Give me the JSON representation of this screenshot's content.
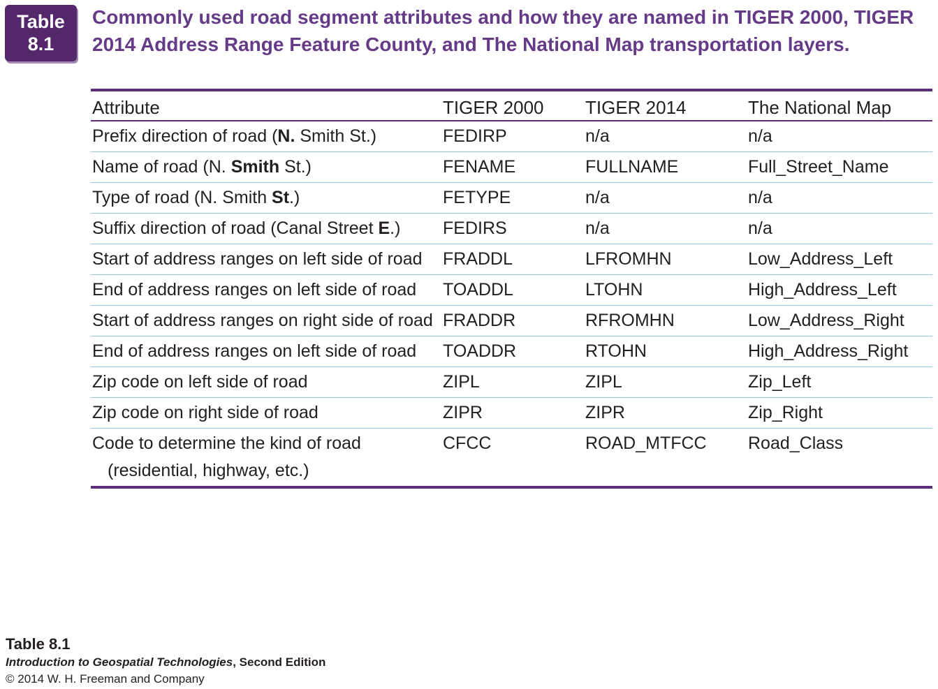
{
  "badge": {
    "line1": "Table",
    "line2": "8.1"
  },
  "title": "Commonly used road segment attributes and how they are named in TIGER 2000, TIGER 2014 Address Range Feature County, and The National Map transportation layers.",
  "table": {
    "headers": [
      "Attribute",
      "TIGER 2000",
      "TIGER 2014",
      "The National Map"
    ],
    "rows": [
      {
        "attr": [
          "Prefix direction of road (",
          "N.",
          " Smith St.)"
        ],
        "bold_index": 1,
        "t2000": "FEDIRP",
        "t2014": "n/a",
        "tnm": "n/a"
      },
      {
        "attr": [
          "Name of road (N. ",
          "Smith",
          " St.)"
        ],
        "bold_index": 1,
        "t2000": "FENAME",
        "t2014": "FULLNAME",
        "tnm": "Full_Street_Name"
      },
      {
        "attr": [
          "Type of road (N. Smith ",
          "St",
          ".)"
        ],
        "bold_index": 1,
        "t2000": "FETYPE",
        "t2014": "n/a",
        "tnm": "n/a"
      },
      {
        "attr": [
          "Suffix direction of road (Canal Street ",
          "E",
          ".)"
        ],
        "bold_index": 1,
        "t2000": "FEDIRS",
        "t2014": "n/a",
        "tnm": "n/a"
      },
      {
        "attr": [
          "Start of address ranges on left side of road"
        ],
        "t2000": "FRADDL",
        "t2014": "LFROMHN",
        "tnm": "Low_Address_Left"
      },
      {
        "attr": [
          "End of address ranges on left side of road"
        ],
        "t2000": "TOADDL",
        "t2014": "LTOHN",
        "tnm": "High_Address_Left"
      },
      {
        "attr": [
          "Start of address ranges on right side of road"
        ],
        "t2000": "FRADDR",
        "t2014": "RFROMHN",
        "tnm": "Low_Address_Right"
      },
      {
        "attr": [
          "End of address ranges on left side of road"
        ],
        "t2000": "TOADDR",
        "t2014": "RTOHN",
        "tnm": "High_Address_Right"
      },
      {
        "attr": [
          "Zip code on left side of road"
        ],
        "t2000": "ZIPL",
        "t2014": "ZIPL",
        "tnm": "Zip_Left"
      },
      {
        "attr": [
          "Zip code on right side of road"
        ],
        "t2000": "ZIPR",
        "t2014": "ZIPR",
        "tnm": "Zip_Right"
      },
      {
        "attr": [
          "Code to determine the kind of road (residential, highway, etc.)"
        ],
        "t2000": "CFCC",
        "t2014": "ROAD_MTFCC",
        "tnm": "Road_Class"
      }
    ]
  },
  "footer": {
    "label": "Table 8.1",
    "book_title": "Introduction to Geospatial Technologies",
    "edition": ", Second Edition",
    "copyright": "© 2014 W. H. Freeman and Company"
  }
}
